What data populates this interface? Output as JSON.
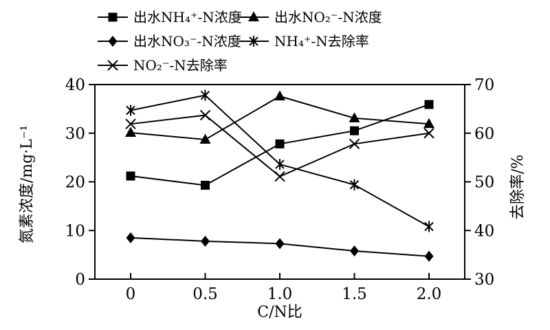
{
  "figure": {
    "background": "#ffffff",
    "ink_color": "#000000"
  },
  "chart_data": {
    "type": "line",
    "x": [
      0,
      0.5,
      1.0,
      1.5,
      2.0
    ],
    "x_tick_labels": [
      "0",
      "0.5",
      "1.0",
      "1.5",
      "2.0"
    ],
    "xlabel": "C/N比",
    "grid": false,
    "legend_position": "top, two columns",
    "axes": {
      "left": {
        "label": "氮素浓度/mg·L⁻¹",
        "ticks": [
          0,
          10,
          20,
          30,
          40
        ],
        "range": [
          0,
          40
        ]
      },
      "right": {
        "label": "去除率/%",
        "ticks": [
          30,
          40,
          50,
          60,
          70
        ],
        "range": [
          30,
          70
        ]
      }
    },
    "series": [
      {
        "name": "出水NH₄⁺-N浓度",
        "axis": "left",
        "marker": "square",
        "values": [
          21.2,
          19.3,
          27.8,
          30.5,
          35.9
        ]
      },
      {
        "name": "出水NO₂⁻-N浓度",
        "axis": "left",
        "marker": "triangle",
        "values": [
          30.1,
          28.7,
          37.6,
          33.1,
          31.9
        ]
      },
      {
        "name": "出水NO₃⁻-N浓度",
        "axis": "left",
        "marker": "diamond",
        "values": [
          8.5,
          7.8,
          7.3,
          5.8,
          4.7
        ]
      },
      {
        "name": "NH₄⁺-N去除率",
        "axis": "right",
        "marker": "asterisk",
        "values": [
          64.7,
          67.8,
          53.6,
          49.4,
          40.8
        ]
      },
      {
        "name": "NO₂⁻-N去除率",
        "axis": "right",
        "marker": "x",
        "values": [
          61.9,
          63.7,
          51.1,
          57.8,
          60.0
        ]
      }
    ]
  }
}
